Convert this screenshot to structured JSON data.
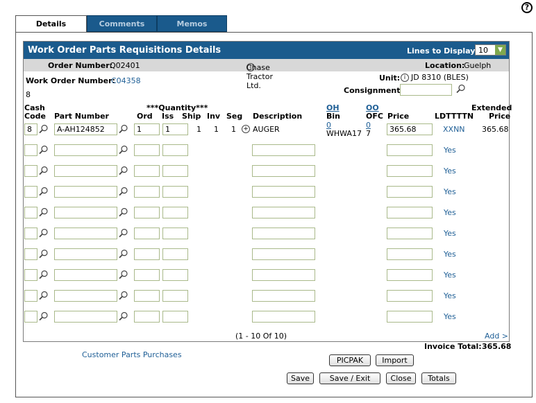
{
  "tabs": [
    {
      "label": "Details",
      "active": true
    },
    {
      "label": "Comments",
      "active": false
    },
    {
      "label": "Memos",
      "active": false
    }
  ],
  "panel": {
    "title": "Work Order Parts Requisitions Details",
    "lines_label": "Lines to Display:",
    "lines_value": "10"
  },
  "info": {
    "order_label": "Order Number:",
    "order_value": "Q02401",
    "customer": "Chase Tractor Ltd.",
    "location_label": "Location:",
    "location_value": "Guelph"
  },
  "work_order": {
    "label": "Work Order Number:",
    "value": "C04358",
    "sub_value": "8",
    "unit_label": "Unit:",
    "unit_value": "JD 8310 (BLES)",
    "consignment_label": "Consignment:"
  },
  "columns": {
    "cash1": "Cash",
    "cash2": "Code",
    "part": "Part Number",
    "qty_group": "***Quantity***",
    "ord": "Ord",
    "iss": "Iss",
    "ship": "Ship",
    "inv": "Inv",
    "seg": "Seg",
    "desc": "Description",
    "oh": "OH",
    "bin": "Bin",
    "oo": "OO",
    "ofc": "OFC",
    "price": "Price",
    "ldtttn": "LDTTTTN",
    "ext1": "Extended",
    "ext2": "Price"
  },
  "first_row": {
    "cash_code": "8",
    "part_number": "A-AH124852",
    "ord": "1",
    "iss": "1",
    "ship": "1",
    "inv": "1",
    "seg": "1",
    "description": "AUGER",
    "oh": "0",
    "bin": "WHWA17",
    "oo": "0",
    "ofc": "7",
    "price": "365.68",
    "ldtttn": "XXNN",
    "extended": "365.68"
  },
  "empty_rows": [
    "Yes",
    "Yes",
    "Yes",
    "Yes",
    "Yes",
    "Yes",
    "Yes",
    "Yes",
    "Yes"
  ],
  "pagination": "(1 - 10 Of 10)",
  "add_link": "Add >",
  "invoice_total_label": "Invoice Total:",
  "invoice_total_value": "365.68",
  "customer_parts_link": "Customer Parts Purchases",
  "buttons": {
    "picpak": "PICPAK",
    "import": "Import",
    "save": "Save",
    "save_exit": "Save / Exit",
    "close": "Close",
    "totals": "Totals"
  },
  "icons": {
    "help": "help-icon",
    "lookup": "magnifier-icon",
    "info": "info-icon",
    "expand": "plus-circle-icon"
  }
}
